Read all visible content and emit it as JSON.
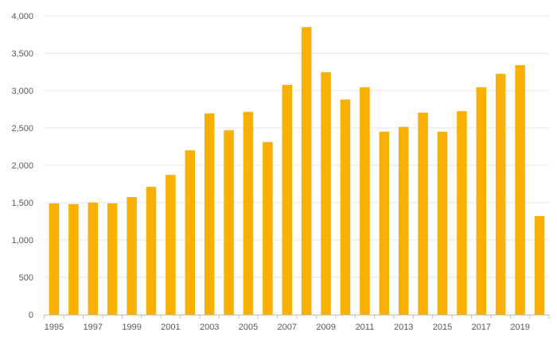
{
  "chart_data": {
    "type": "bar",
    "categories": [
      "1995",
      "1996",
      "1997",
      "1998",
      "1999",
      "2000",
      "2001",
      "2002",
      "2003",
      "2004",
      "2005",
      "2006",
      "2007",
      "2008",
      "2009",
      "2010",
      "2011",
      "2012",
      "2013",
      "2014",
      "2015",
      "2016",
      "2017",
      "2018",
      "2019",
      "2020"
    ],
    "x_tick_labels": [
      "1995",
      "1997",
      "1999",
      "2001",
      "2003",
      "2005",
      "2007",
      "2009",
      "2011",
      "2013",
      "2015",
      "2017",
      "2019"
    ],
    "values": [
      1490,
      1480,
      1500,
      1490,
      1575,
      1710,
      1870,
      2200,
      2695,
      2470,
      2715,
      2310,
      3075,
      3850,
      3245,
      2880,
      3045,
      2450,
      2515,
      2705,
      2450,
      2725,
      3045,
      3225,
      3340,
      1320
    ],
    "ylim": [
      0,
      4000
    ],
    "y_ticks": [
      0,
      500,
      1000,
      1500,
      2000,
      2500,
      3000,
      3500,
      4000
    ],
    "y_tick_labels": [
      "0",
      "500",
      "1,000",
      "1,500",
      "2,000",
      "2,500",
      "3,000",
      "3,500",
      "4,000"
    ],
    "bar_color": "#f9b000",
    "grid": true,
    "legend": "none"
  }
}
